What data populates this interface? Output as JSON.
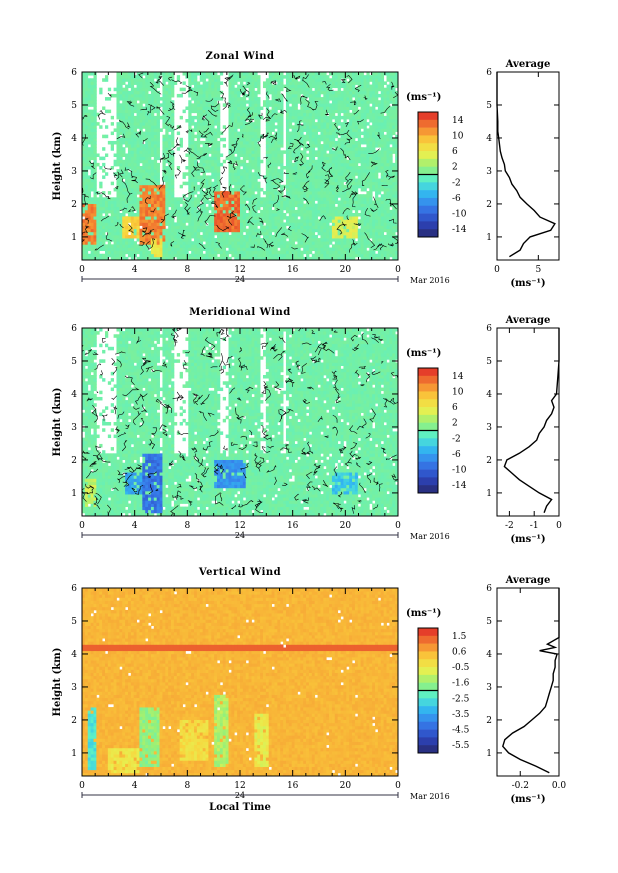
{
  "chart_data": [
    {
      "type": "heatmap",
      "title": "Zonal Wind",
      "ylabel": "Height (km)",
      "unit_label": "(ms⁻¹)",
      "xlim": [
        0,
        24
      ],
      "ylim": [
        0.3,
        6
      ],
      "x_ticks": [
        "0",
        "4",
        "8",
        "12",
        "16",
        "20",
        "0"
      ],
      "y_ticks": [
        "1",
        "2",
        "3",
        "4",
        "5",
        "6"
      ],
      "day_label": "24",
      "month_label": "Mar 2016",
      "colorbar_range": [
        -16,
        16
      ],
      "colorbar_ticks": [
        "14",
        "10",
        "6",
        "2",
        "-2",
        "-6",
        "-10",
        "-14"
      ],
      "features": {
        "background_value": 0,
        "gaps_x": [
          [
            1.0,
            2.6
          ],
          [
            5.8,
            6.2
          ],
          [
            7.0,
            8.0
          ],
          [
            10.5,
            11.2
          ],
          [
            13.5,
            14.0
          ],
          [
            15.2,
            15.6
          ]
        ],
        "patches": [
          {
            "x": [
              0.0,
              1.0
            ],
            "y": [
              0.8,
              2.0
            ],
            "value": 12
          },
          {
            "x": [
              4.4,
              6.4
            ],
            "y": [
              0.8,
              2.6
            ],
            "value": 12
          },
          {
            "x": [
              3.0,
              4.4
            ],
            "y": [
              1.0,
              1.6
            ],
            "value": 8
          },
          {
            "x": [
              10.0,
              12.0
            ],
            "y": [
              1.2,
              2.4
            ],
            "value": 13
          },
          {
            "x": [
              5.2,
              6.2
            ],
            "y": [
              0.4,
              1.0
            ],
            "value": 6
          },
          {
            "x": [
              19.0,
              21.0
            ],
            "y": [
              1.0,
              1.6
            ],
            "value": 5
          }
        ]
      },
      "average": {
        "title": "Average",
        "xlabel": "(ms⁻¹)",
        "xlim": [
          0,
          7.5
        ],
        "x_ticks": [
          "0",
          "5"
        ],
        "heights": [
          0.4,
          0.6,
          0.8,
          1.0,
          1.2,
          1.4,
          1.6,
          1.8,
          2.0,
          2.2,
          2.4,
          2.6,
          2.8,
          3.0,
          3.2,
          3.4,
          3.6,
          3.8,
          4.0,
          4.2,
          4.5,
          5.0,
          5.5,
          6.0
        ],
        "values": [
          1.5,
          2.8,
          3.2,
          4.0,
          6.5,
          7.0,
          5.2,
          4.5,
          3.6,
          2.8,
          2.4,
          1.8,
          1.5,
          1.0,
          0.9,
          0.6,
          0.4,
          0.3,
          0.2,
          0.1,
          0.1,
          0.0,
          0.0,
          0.0
        ]
      }
    },
    {
      "type": "heatmap",
      "title": "Meridional Wind",
      "ylabel": "Height (km)",
      "unit_label": "(ms⁻¹)",
      "xlim": [
        0,
        24
      ],
      "ylim": [
        0.3,
        6
      ],
      "x_ticks": [
        "0",
        "4",
        "8",
        "12",
        "16",
        "20",
        "0"
      ],
      "y_ticks": [
        "1",
        "2",
        "3",
        "4",
        "5",
        "6"
      ],
      "day_label": "24",
      "month_label": "Mar 2016",
      "colorbar_range": [
        -16,
        16
      ],
      "colorbar_ticks": [
        "14",
        "10",
        "6",
        "2",
        "-2",
        "-6",
        "-10",
        "-14"
      ],
      "features": {
        "background_value": 0,
        "gaps_x": [
          [
            1.0,
            2.6
          ],
          [
            5.8,
            6.2
          ],
          [
            7.0,
            8.0
          ],
          [
            10.5,
            11.2
          ],
          [
            13.5,
            14.0
          ],
          [
            15.2,
            15.6
          ]
        ],
        "patches": [
          {
            "x": [
              4.5,
              6.2
            ],
            "y": [
              0.4,
              2.2
            ],
            "value": -9
          },
          {
            "x": [
              3.2,
              4.5
            ],
            "y": [
              1.0,
              1.6
            ],
            "value": -6
          },
          {
            "x": [
              10.0,
              12.5
            ],
            "y": [
              1.2,
              2.0
            ],
            "value": -7
          },
          {
            "x": [
              0.2,
              1.0
            ],
            "y": [
              0.6,
              1.4
            ],
            "value": 4
          },
          {
            "x": [
              19.0,
              21.0
            ],
            "y": [
              1.0,
              1.6
            ],
            "value": -4
          }
        ]
      },
      "average": {
        "title": "Average",
        "xlabel": "(ms⁻¹)",
        "xlim": [
          -2.5,
          0
        ],
        "x_ticks": [
          "-2",
          "-1",
          "0"
        ],
        "heights": [
          0.4,
          0.6,
          0.8,
          1.0,
          1.2,
          1.4,
          1.6,
          1.8,
          2.0,
          2.2,
          2.4,
          2.6,
          2.8,
          3.0,
          3.2,
          3.4,
          3.6,
          3.8,
          4.0,
          4.5,
          5.0,
          5.5,
          6.0
        ],
        "values": [
          -0.6,
          -0.5,
          -0.3,
          -0.8,
          -1.2,
          -1.6,
          -1.9,
          -2.2,
          -2.1,
          -1.6,
          -1.2,
          -0.9,
          -0.8,
          -0.6,
          -0.5,
          -0.3,
          -0.2,
          -0.3,
          -0.1,
          -0.05,
          0.0,
          0.0,
          0.0
        ]
      }
    },
    {
      "type": "heatmap",
      "title": "Vertical Wind",
      "ylabel": "Height (km)",
      "xlabel": "Local Time",
      "unit_label": "(ms⁻¹)",
      "xlim": [
        0,
        24
      ],
      "ylim": [
        0.3,
        6
      ],
      "x_ticks": [
        "0",
        "4",
        "8",
        "12",
        "16",
        "20",
        "0"
      ],
      "y_ticks": [
        "1",
        "2",
        "3",
        "4",
        "5",
        "6"
      ],
      "day_label": "24",
      "month_label": "Mar 2016",
      "colorbar_range": [
        -6,
        2
      ],
      "colorbar_ticks": [
        "1.5",
        "0.6",
        "-0.5",
        "-1.6",
        "-2.5",
        "-3.5",
        "-4.5",
        "-5.5"
      ],
      "features": {
        "background_value": 0.4,
        "band_y": 4.2,
        "patches": [
          {
            "x": [
              0.4,
              1.2
            ],
            "y": [
              0.5,
              2.4
            ],
            "value": -2.5
          },
          {
            "x": [
              4.4,
              5.8
            ],
            "y": [
              0.6,
              2.4
            ],
            "value": -1.6
          },
          {
            "x": [
              10.0,
              11.2
            ],
            "y": [
              0.6,
              2.8
            ],
            "value": -1.3
          },
          {
            "x": [
              13.2,
              14.2
            ],
            "y": [
              0.6,
              2.2
            ],
            "value": -0.6
          },
          {
            "x": [
              2.0,
              4.4
            ],
            "y": [
              0.4,
              1.2
            ],
            "value": -0.4
          },
          {
            "x": [
              7.5,
              9.5
            ],
            "y": [
              0.8,
              2.0
            ],
            "value": -0.2
          }
        ]
      },
      "average": {
        "title": "Average",
        "xlabel": "(ms⁻¹)",
        "xlim": [
          -0.32,
          0.0
        ],
        "x_ticks": [
          "-0.2",
          "0.0"
        ],
        "heights": [
          0.4,
          0.6,
          0.8,
          1.0,
          1.2,
          1.4,
          1.6,
          1.8,
          2.0,
          2.2,
          2.4,
          2.6,
          2.8,
          3.0,
          3.2,
          3.4,
          3.6,
          3.8,
          4.0,
          4.1,
          4.2,
          4.3,
          4.5,
          5.0,
          5.5,
          6.0
        ],
        "values": [
          -0.05,
          -0.12,
          -0.2,
          -0.26,
          -0.29,
          -0.28,
          -0.24,
          -0.18,
          -0.14,
          -0.1,
          -0.07,
          -0.06,
          -0.05,
          -0.04,
          -0.03,
          -0.03,
          -0.02,
          -0.02,
          -0.01,
          -0.1,
          -0.02,
          -0.06,
          0.0,
          0.0,
          0.0,
          0.0
        ]
      }
    }
  ]
}
